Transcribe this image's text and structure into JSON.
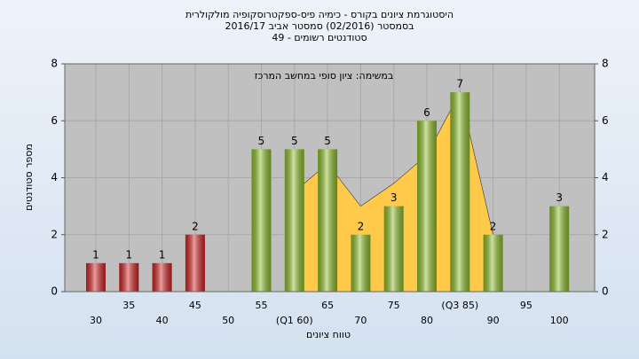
{
  "chart_data": {
    "type": "bar",
    "title": "היסטוגרמת ציונים בקורס - כימיה פיס-ספקטרוסקופיה מולקולרית",
    "subtitle": "בסמסטר (02/2016)  סמסטר אביב 2016/17",
    "subtitle2": "סטודנטים רשומים - 49",
    "annotation": "במשימה: ציון סופי במחשב המרכז",
    "x_label": "טווח ציונים",
    "y_label": "מספר סטודנטים",
    "categories": [
      "30",
      "35",
      "40",
      "45",
      "50",
      "55",
      "(Q1 60)",
      "65",
      "70",
      "75",
      "80",
      "(Q3 85)",
      "90",
      "95",
      "100"
    ],
    "values": [
      1,
      1,
      1,
      2,
      0,
      5,
      5,
      5,
      2,
      3,
      6,
      7,
      2,
      0,
      3
    ],
    "colors": [
      "#d42424",
      "#d42424",
      "#d42424",
      "#d42424",
      "#d42424",
      "#8fbf2a",
      "#8fbf2a",
      "#8fbf2a",
      "#8fbf2a",
      "#8fbf2a",
      "#8fbf2a",
      "#8fbf2a",
      "#8fbf2a",
      "#8fbf2a",
      "#8fbf2a"
    ],
    "area": {
      "color": "#ffc94a",
      "values": [
        null,
        null,
        null,
        null,
        null,
        null,
        3.5,
        4.5,
        3,
        3.8,
        4.8,
        7,
        2,
        null,
        null
      ]
    },
    "ylim": [
      0,
      8
    ],
    "yticks": [
      0,
      2,
      4,
      6,
      8
    ],
    "y2lim": [
      0,
      8
    ],
    "y2ticks": [
      0,
      2,
      4,
      6,
      8
    ],
    "grid": true
  }
}
